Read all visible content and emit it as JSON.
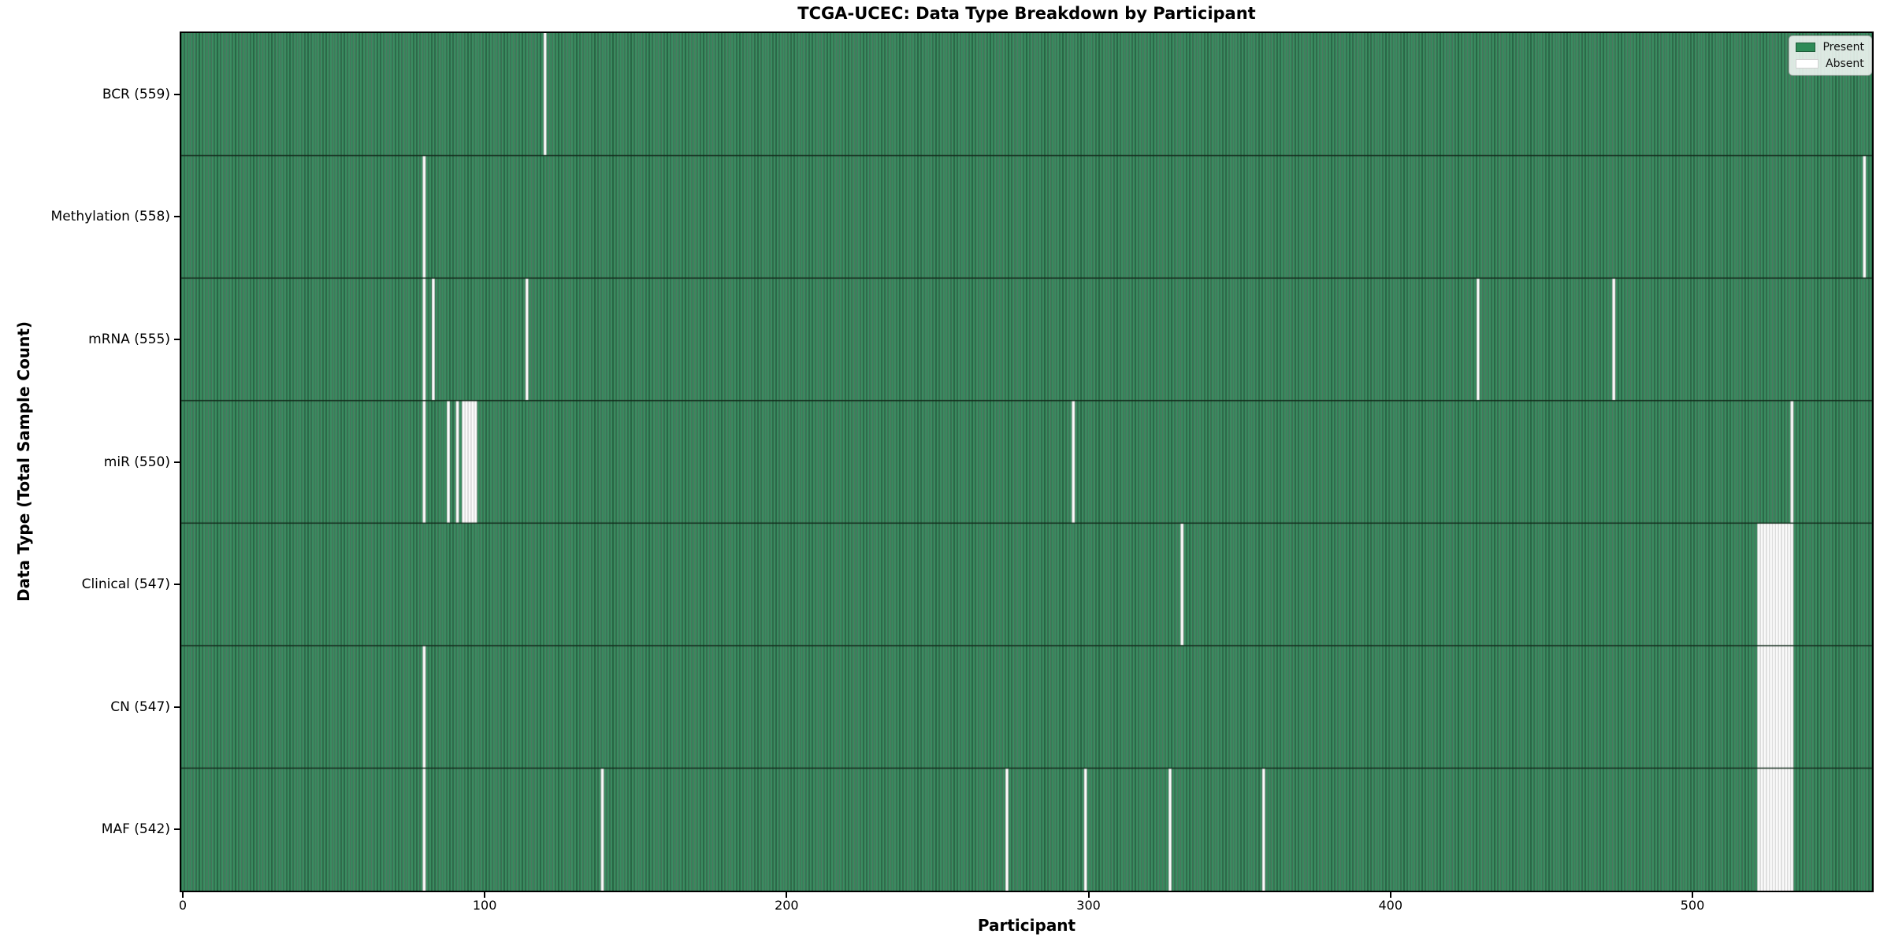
{
  "chart_data": {
    "type": "heatmap",
    "title": "TCGA-UCEC: Data Type Breakdown by Participant",
    "xlabel": "Participant",
    "ylabel": "Data Type (Total Sample Count)",
    "x_ticks": [
      0,
      100,
      200,
      300,
      400,
      500
    ],
    "n_participants": 560,
    "x_range": [
      -0.5,
      559.5
    ],
    "grid": false,
    "legend": {
      "position": "upper-right",
      "entries": [
        {
          "label": "Present",
          "color": "#2e8b57"
        },
        {
          "label": "Absent",
          "color": "#ffffff"
        }
      ]
    },
    "colors": {
      "present_fill": "#3b9163",
      "present_edge": "#1d4730",
      "absent_fill": "#ffffff",
      "absent_edge": "#c6c6c6",
      "row_divider": "#11291a",
      "plot_border": "#000000"
    },
    "rows": [
      {
        "label": "BCR",
        "count": 559,
        "tick_label": "BCR (559)",
        "absent_participants": [
          120
        ]
      },
      {
        "label": "Methylation",
        "count": 558,
        "tick_label": "Methylation (558)",
        "absent_participants": [
          80,
          557
        ]
      },
      {
        "label": "mRNA",
        "count": 555,
        "tick_label": "mRNA (555)",
        "absent_participants": [
          80,
          83,
          114,
          429,
          474
        ]
      },
      {
        "label": "miR",
        "count": 550,
        "tick_label": "miR (550)",
        "absent_participants": [
          80,
          88,
          91,
          93,
          94,
          95,
          96,
          97,
          295,
          533
        ]
      },
      {
        "label": "Clinical",
        "count": 547,
        "tick_label": "Clinical (547)",
        "absent_participants": [
          331,
          522,
          523,
          524,
          525,
          526,
          527,
          528,
          529,
          530,
          531,
          532,
          533
        ]
      },
      {
        "label": "CN",
        "count": 547,
        "tick_label": "CN (547)",
        "absent_participants": [
          80,
          522,
          523,
          524,
          525,
          526,
          527,
          528,
          529,
          530,
          531,
          532,
          533
        ]
      },
      {
        "label": "MAF",
        "count": 542,
        "tick_label": "MAF (542)",
        "absent_participants": [
          80,
          139,
          273,
          299,
          327,
          358,
          522,
          523,
          524,
          525,
          526,
          527,
          528,
          529,
          530,
          531,
          532,
          533
        ]
      }
    ]
  }
}
